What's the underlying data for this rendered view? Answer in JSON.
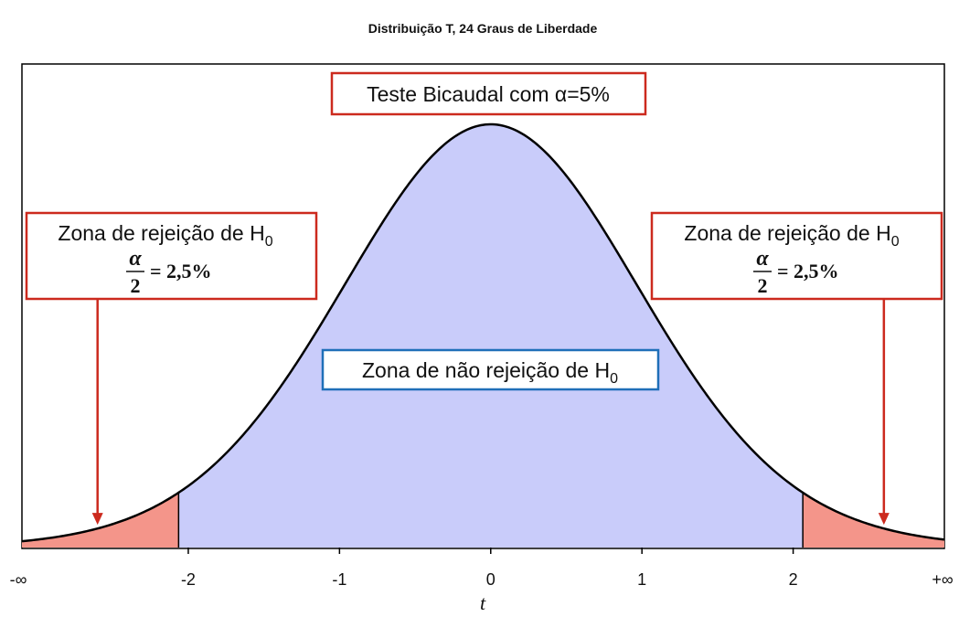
{
  "chart_data": {
    "type": "area",
    "title": "Distribuição T, 24 Graus de Liberdade",
    "distribution": "student-t",
    "degrees_of_freedom": 24,
    "alpha": 0.05,
    "critical_values": [
      -2.064,
      2.064
    ],
    "xlim": [
      -3.1,
      3.0
    ],
    "xlabel": "t",
    "x_ticks": [
      {
        "value": -3.1,
        "label": "-∞"
      },
      {
        "value": -2,
        "label": "-2"
      },
      {
        "value": -1,
        "label": "-1"
      },
      {
        "value": 0,
        "label": "0"
      },
      {
        "value": 1,
        "label": "1"
      },
      {
        "value": 2,
        "label": "2"
      },
      {
        "value": 3.0,
        "label": "+∞"
      }
    ],
    "grid": false,
    "regions": [
      {
        "name": "rejeicao-esquerda",
        "from": -3.1,
        "to": -2.064,
        "color": "#f4958a"
      },
      {
        "name": "nao-rejeicao",
        "from": -2.064,
        "to": 2.064,
        "color": "#c9ccfa"
      },
      {
        "name": "rejeicao-direita",
        "from": 2.064,
        "to": 3.0,
        "color": "#f4958a"
      }
    ],
    "annotations": {
      "test_label": "Teste Bicaudal com α=5%",
      "left_rejection": {
        "text": "Zona de rejeição de H",
        "subscript": "0",
        "fraction_numerator": "α",
        "fraction_denominator": "2",
        "fraction_value": "= 2,5%",
        "arrow_target_x": -2.6
      },
      "right_rejection": {
        "text": "Zona de rejeição de H",
        "subscript": "0",
        "fraction_numerator": "α",
        "fraction_denominator": "2",
        "fraction_value": "= 2,5%",
        "arrow_target_x": 2.6
      },
      "non_rejection": {
        "text": "Zona de não rejeição de H",
        "subscript": "0"
      }
    },
    "colors": {
      "curve": "#000000",
      "rejection_fill": "#f4958a",
      "acceptance_fill": "#c9ccfa",
      "red_box_border": "#cc2a1e",
      "blue_box_border": "#1f6fb8",
      "arrow": "#cc2a1e"
    }
  }
}
